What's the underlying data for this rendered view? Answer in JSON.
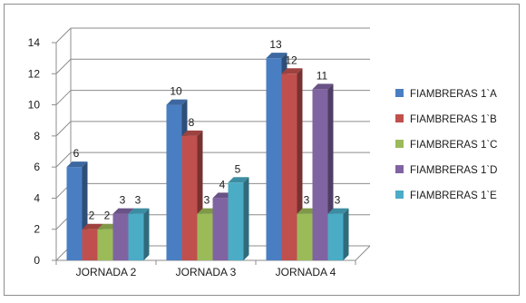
{
  "chart_data": {
    "type": "bar",
    "categories": [
      "JORNADA 2",
      "JORNADA 3",
      "JORNADA 4"
    ],
    "series": [
      {
        "name": "FIAMBRERAS 1`A",
        "values": [
          6,
          10,
          13
        ],
        "color": "#4a7ec2"
      },
      {
        "name": "FIAMBRERAS 1`B",
        "values": [
          2,
          8,
          12
        ],
        "color": "#c0504d"
      },
      {
        "name": "FIAMBRERAS 1`C",
        "values": [
          2,
          3,
          3
        ],
        "color": "#9bbb59"
      },
      {
        "name": "FIAMBRERAS 1`D",
        "values": [
          3,
          4,
          11
        ],
        "color": "#8064a2"
      },
      {
        "name": "FIAMBRERAS 1`E",
        "values": [
          3,
          5,
          3
        ],
        "color": "#4bacc6"
      }
    ],
    "ylim": [
      0,
      14
    ],
    "yticks": [
      0,
      2,
      4,
      6,
      8,
      10,
      12,
      14
    ],
    "grid": true,
    "legend_position": "right",
    "style": "3d-clustered-column"
  }
}
